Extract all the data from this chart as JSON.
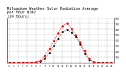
{
  "title": "Milwaukee Weather Solar Radiation Average\nper Hour W/m2\n(24 Hours)",
  "hours": [
    0,
    1,
    2,
    3,
    4,
    5,
    6,
    7,
    8,
    9,
    10,
    11,
    12,
    13,
    14,
    15,
    16,
    17,
    18,
    19,
    20,
    21,
    22,
    23
  ],
  "solar_radiation": [
    0,
    0,
    0,
    0,
    0,
    2,
    8,
    40,
    130,
    250,
    390,
    530,
    660,
    710,
    600,
    490,
    370,
    210,
    70,
    15,
    2,
    0,
    0,
    0
  ],
  "avg_line": [
    1,
    1,
    1,
    1,
    1,
    1,
    5,
    20,
    80,
    170,
    300,
    430,
    550,
    590,
    540,
    460,
    330,
    160,
    45,
    8,
    1,
    1,
    1,
    1
  ],
  "line_color": "#ff0000",
  "avg_color": "#000000",
  "bg_color": "#ffffff",
  "grid_color": "#888888",
  "ylim": [
    0,
    800
  ],
  "yticks": [
    100,
    200,
    300,
    400,
    500,
    600,
    700,
    800
  ],
  "xticks": [
    0,
    1,
    2,
    3,
    4,
    5,
    6,
    7,
    8,
    9,
    10,
    11,
    12,
    13,
    14,
    15,
    16,
    17,
    18,
    19,
    20,
    21,
    22,
    23
  ],
  "title_fontsize": 3.8
}
